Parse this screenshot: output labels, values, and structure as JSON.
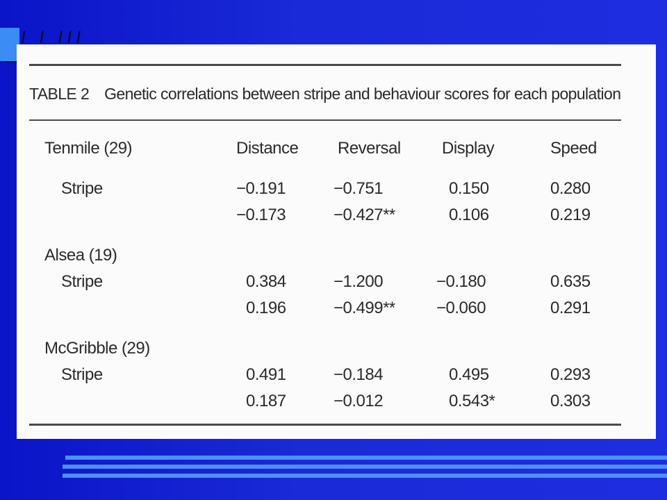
{
  "slide_mark": "I I III",
  "table": {
    "label": "TABLE 2",
    "caption": "Genetic correlations between stripe and behaviour scores for each population",
    "columns": [
      "Distance",
      "Reversal",
      "Display",
      "Speed"
    ],
    "groups": [
      {
        "name": "Tenmile (29)",
        "row_label": "Stripe",
        "rows": [
          [
            "−0.191",
            "−0.751",
            "0.150",
            "0.280"
          ],
          [
            "−0.173",
            "−0.427**",
            "0.106",
            "0.219"
          ]
        ]
      },
      {
        "name": "Alsea (19)",
        "row_label": "Stripe",
        "rows": [
          [
            "0.384",
            "−1.200",
            "−0.180",
            "0.635"
          ],
          [
            "0.196",
            "−0.499**",
            "−0.060",
            "0.291"
          ]
        ]
      },
      {
        "name": "McGribble (29)",
        "row_label": "Stripe",
        "rows": [
          [
            "0.491",
            "−0.184",
            "0.495",
            "0.293"
          ],
          [
            "0.187",
            "−0.012",
            "0.543*",
            "0.303"
          ]
        ]
      }
    ]
  }
}
